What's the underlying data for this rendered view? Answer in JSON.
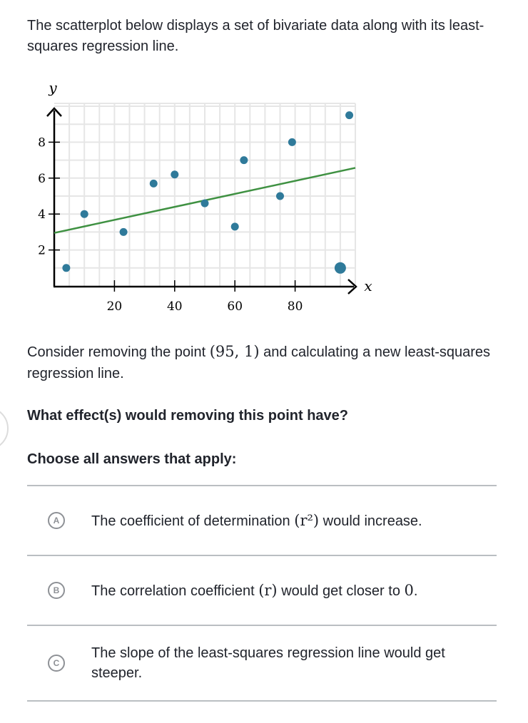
{
  "intro": {
    "text": "The scatterplot below displays a set of bivariate data along with its least-squares regression line."
  },
  "chart_data": {
    "type": "scatter",
    "title": "",
    "xlabel": "x",
    "ylabel": "y",
    "xlim": [
      0,
      100
    ],
    "ylim": [
      0,
      10
    ],
    "x_ticks": [
      20,
      40,
      60,
      80
    ],
    "y_ticks": [
      2,
      4,
      6,
      8
    ],
    "grid": true,
    "grid_step_x": 5,
    "grid_step_y": 1,
    "point_color": "#2f7a9a",
    "line_color": "#3f9142",
    "grid_color": "#e6e6e6",
    "points": [
      {
        "x": 4,
        "y": 1
      },
      {
        "x": 10,
        "y": 4
      },
      {
        "x": 23,
        "y": 3
      },
      {
        "x": 33,
        "y": 5.7
      },
      {
        "x": 40,
        "y": 6.2
      },
      {
        "x": 50,
        "y": 4.6
      },
      {
        "x": 60,
        "y": 3.3
      },
      {
        "x": 63,
        "y": 7
      },
      {
        "x": 75,
        "y": 5
      },
      {
        "x": 79,
        "y": 8
      },
      {
        "x": 95,
        "y": 1,
        "highlighted": true
      },
      {
        "x": 98,
        "y": 9.5
      }
    ],
    "regression_line": {
      "intercept": 2.95,
      "slope": 0.0362,
      "x_start": 0,
      "x_end": 100
    }
  },
  "consider": {
    "prefix": "Consider removing the point ",
    "point": "(95, 1)",
    "suffix": " and calculating a new least-squares regression line."
  },
  "question": {
    "text": "What effect(s) would removing this point have?"
  },
  "instruction": {
    "text": "Choose all answers that apply:"
  },
  "choices": [
    {
      "letter": "A",
      "before": "The coefficient of determination ",
      "math": "(r²)",
      "after": " would increase."
    },
    {
      "letter": "B",
      "before": "The correlation coefficient ",
      "math": "(r)",
      "after": " would get closer to ",
      "math2": "0",
      "after2": "."
    },
    {
      "letter": "C",
      "before": "The slope of the least-squares regression line would get steeper."
    }
  ]
}
